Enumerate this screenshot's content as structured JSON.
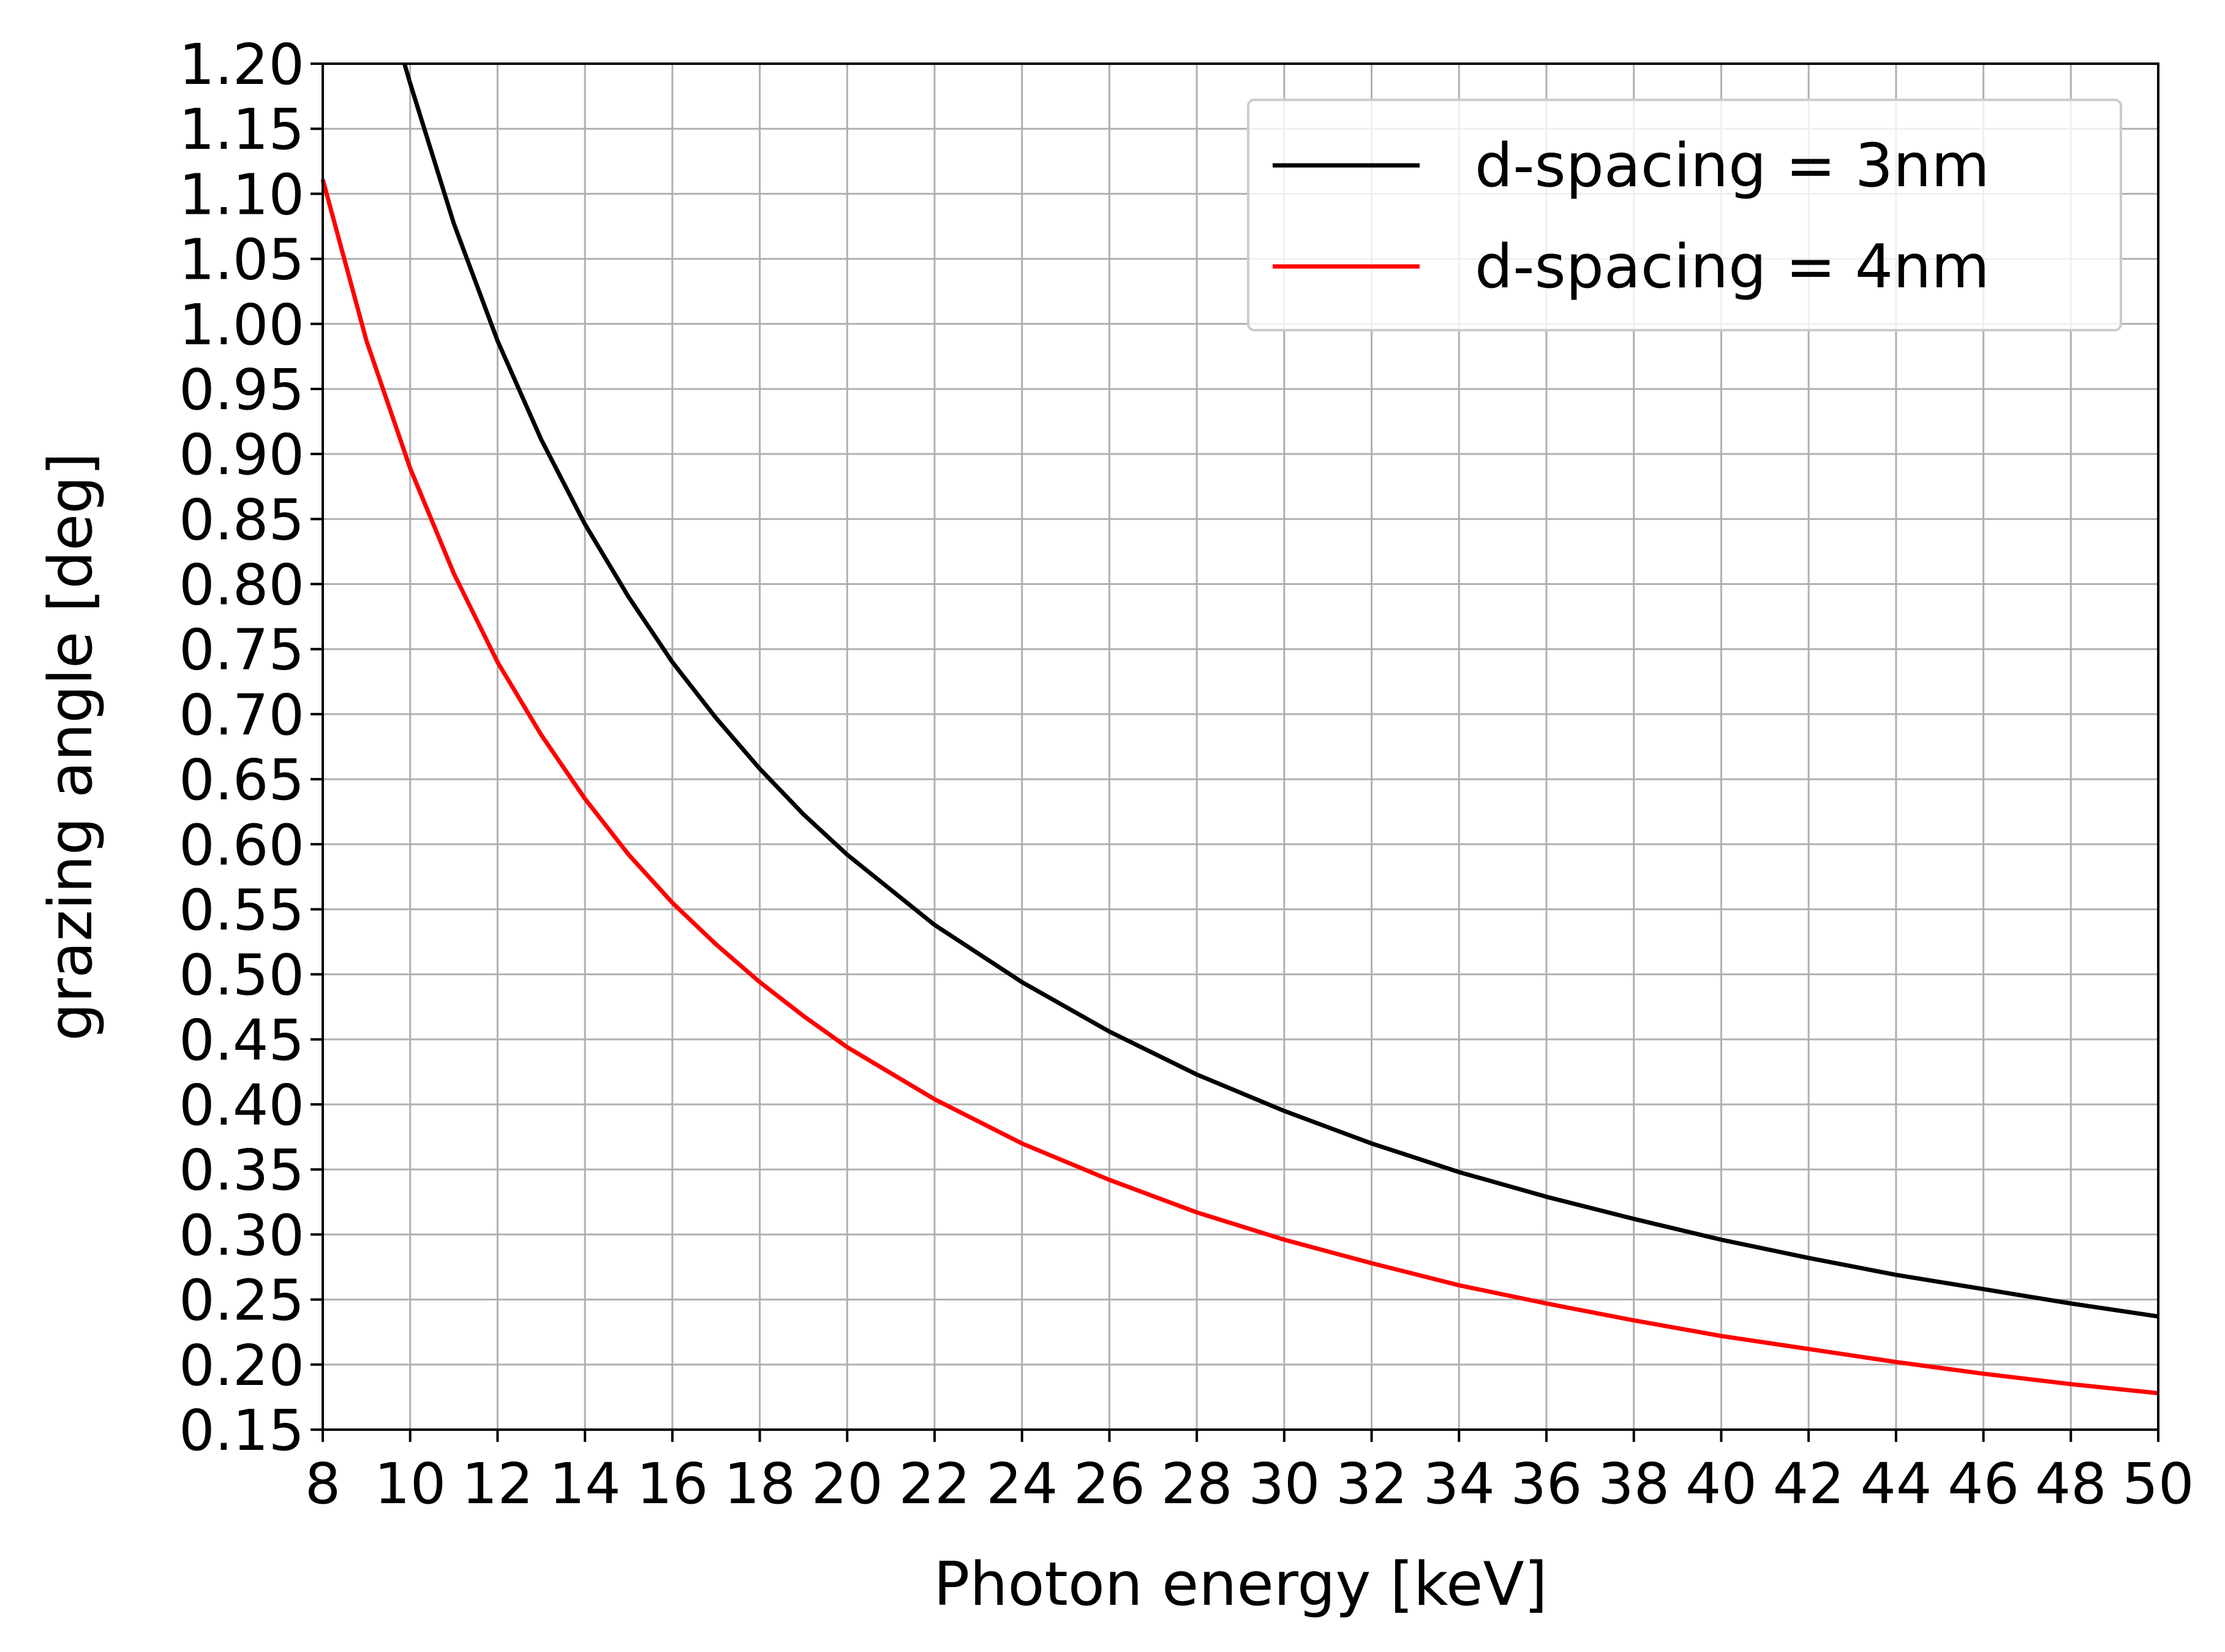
{
  "chart_data": {
    "type": "line",
    "xlabel": "Photon energy [keV]",
    "ylabel": "grazing angle [deg]",
    "xlim": [
      8,
      50
    ],
    "ylim": [
      0.15,
      1.2
    ],
    "x_ticks": [
      8,
      10,
      12,
      14,
      16,
      18,
      20,
      22,
      24,
      26,
      28,
      30,
      32,
      34,
      36,
      38,
      40,
      42,
      44,
      46,
      48,
      50
    ],
    "x_tick_labels": [
      "8",
      "10",
      "12",
      "14",
      "16",
      "18",
      "20",
      "22",
      "24",
      "26",
      "28",
      "30",
      "32",
      "34",
      "36",
      "38",
      "40",
      "42",
      "44",
      "46",
      "48",
      "50"
    ],
    "y_ticks": [
      0.15,
      0.2,
      0.25,
      0.3,
      0.35,
      0.4,
      0.45,
      0.5,
      0.55,
      0.6,
      0.65,
      0.7,
      0.75,
      0.8,
      0.85,
      0.9,
      0.95,
      1.0,
      1.05,
      1.1,
      1.15,
      1.2
    ],
    "y_tick_labels": [
      "0.15",
      "0.20",
      "0.25",
      "0.30",
      "0.35",
      "0.40",
      "0.45",
      "0.50",
      "0.55",
      "0.60",
      "0.65",
      "0.70",
      "0.75",
      "0.80",
      "0.85",
      "0.90",
      "0.95",
      "1.00",
      "1.05",
      "1.10",
      "1.15",
      "1.20"
    ],
    "grid": true,
    "legend_position": "top-right",
    "series": [
      {
        "name": "d-spacing = 3nm",
        "color": "#000000",
        "x": [
          9.87,
          10,
          11,
          12,
          13,
          14,
          15,
          16,
          17,
          18,
          19,
          20,
          22,
          24,
          26,
          28,
          30,
          32,
          34,
          36,
          38,
          40,
          42,
          44,
          46,
          48,
          50
        ],
        "y": [
          1.2,
          1.185,
          1.077,
          0.987,
          0.911,
          0.846,
          0.79,
          0.74,
          0.697,
          0.658,
          0.623,
          0.592,
          0.538,
          0.494,
          0.456,
          0.423,
          0.395,
          0.37,
          0.348,
          0.329,
          0.312,
          0.296,
          0.282,
          0.269,
          0.258,
          0.247,
          0.237
        ]
      },
      {
        "name": "d-spacing = 4nm",
        "color": "#ff0000",
        "x": [
          8,
          9,
          10,
          11,
          12,
          13,
          14,
          15,
          16,
          17,
          18,
          19,
          20,
          22,
          24,
          26,
          28,
          30,
          32,
          34,
          36,
          38,
          40,
          42,
          44,
          46,
          48,
          50
        ],
        "y": [
          1.111,
          0.987,
          0.889,
          0.808,
          0.74,
          0.684,
          0.635,
          0.592,
          0.555,
          0.523,
          0.494,
          0.468,
          0.444,
          0.404,
          0.37,
          0.342,
          0.317,
          0.296,
          0.278,
          0.261,
          0.247,
          0.234,
          0.222,
          0.212,
          0.202,
          0.193,
          0.185,
          0.178
        ]
      }
    ]
  }
}
